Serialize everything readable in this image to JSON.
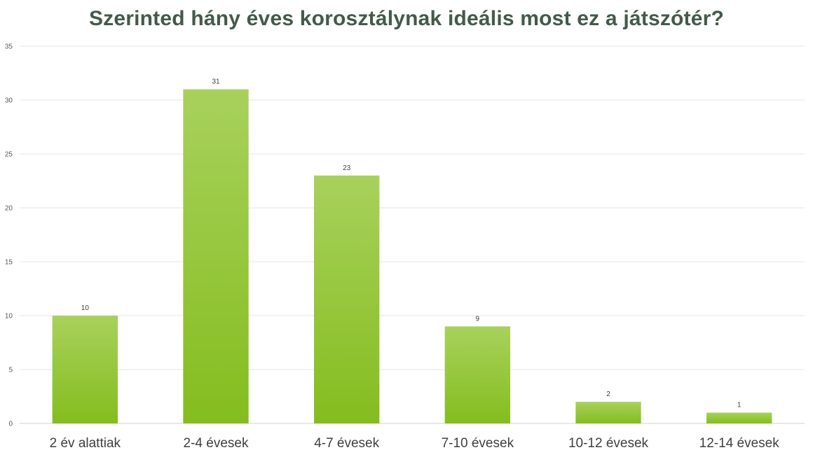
{
  "chart_data": {
    "type": "bar",
    "title": "Szerinted hány éves korosztálynak ideális most ez a játszótér?",
    "xlabel": "",
    "ylabel": "",
    "categories": [
      "2 év alattiak",
      "2-4 évesek",
      "4-7 évesek",
      "7-10 évesek",
      "10-12 évesek",
      "12-14 évesek"
    ],
    "values": [
      10,
      31,
      23,
      9,
      2,
      1
    ],
    "ylim": [
      0,
      35
    ],
    "yticks": [
      0,
      5,
      10,
      15,
      20,
      25,
      30,
      35
    ],
    "grid": true,
    "legend": "none",
    "colors": {
      "bar_top": "#a8d15c",
      "bar_bottom": "#84bd1e",
      "title": "#435a4a"
    }
  }
}
